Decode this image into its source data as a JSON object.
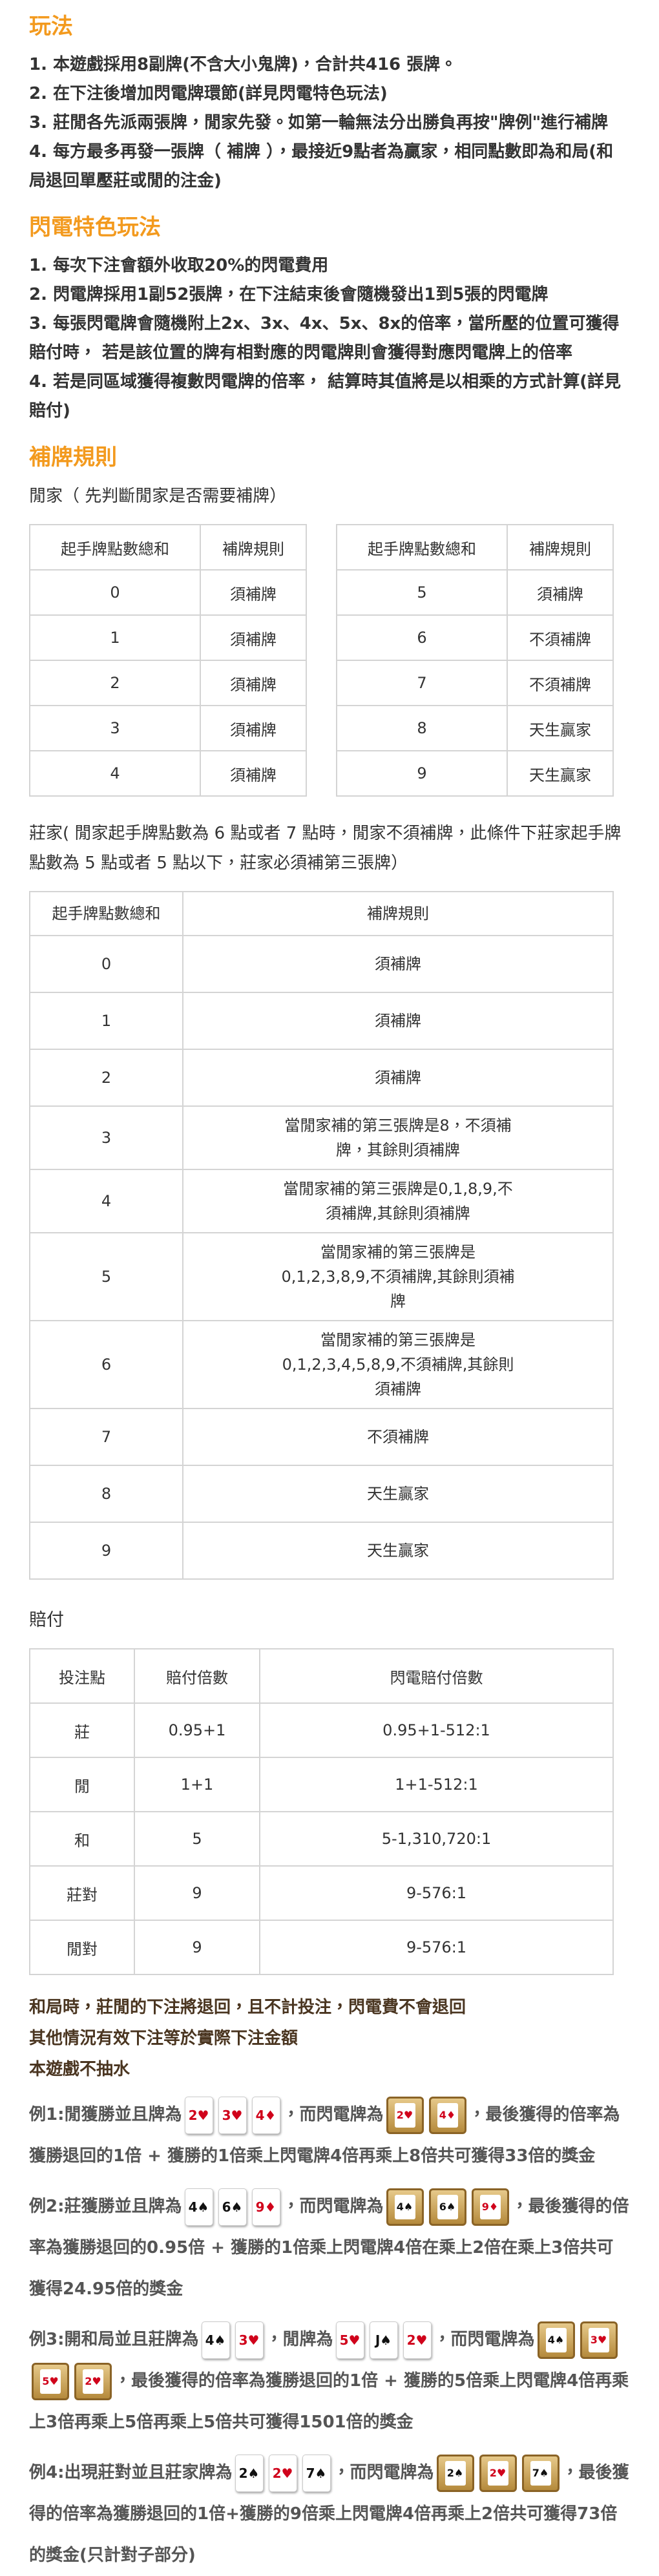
{
  "rules": {
    "title": "玩法",
    "items": [
      "1. 本遊戲採用8副牌(不含大小鬼牌)，合計共416 張牌。",
      "2. 在下注後增加閃電牌環節(詳見閃電特色玩法)",
      "3. 莊閒各先派兩張牌，閒家先發。如第一輪無法分出勝負再按\"牌例\"進行補牌",
      "4. 每方最多再發一張牌（ 補牌 ），最接近9點者為贏家，相同點數即為和局(和局退回單壓莊或閒的注金)"
    ]
  },
  "lightning": {
    "title": "閃電特色玩法",
    "items": [
      "1. 每次下注會額外收取20%的閃電費用",
      "2. 閃電牌採用1副52張牌，在下注結束後會隨機發出1到5張的閃電牌",
      "3. 每張閃電牌會隨機附上2x、3x、4x、5x、8x的倍率，當所壓的位置可獲得賠付時， 若是該位置的牌有相對應的閃電牌則會獲得對應閃電牌上的倍率",
      "4. 若是同區域獲得複數閃電牌的倍率， 結算時其值將是以相乘的方式計算(詳見賠付)"
    ]
  },
  "drawing": {
    "title": "補牌規則",
    "player_note": "閒家（ 先判斷閒家是否需要補牌）",
    "player_table": {
      "header": [
        "起手牌點數總和",
        "補牌規則"
      ],
      "rows": [
        [
          "0",
          "須補牌"
        ],
        [
          "1",
          "須補牌"
        ],
        [
          "2",
          "須補牌"
        ],
        [
          "3",
          "須補牌"
        ],
        [
          "4",
          "須補牌"
        ],
        [
          "5",
          "須補牌"
        ],
        [
          "6",
          "不須補牌"
        ],
        [
          "7",
          "不須補牌"
        ],
        [
          "8",
          "天生贏家"
        ],
        [
          "9",
          "天生贏家"
        ]
      ]
    },
    "banker_note": "莊家( 閒家起手牌點數為 6 點或者 7 點時，閒家不須補牌，此條件下莊家起手牌點數為 5 點或者 5 點以下，莊家必須補第三張牌）",
    "banker_table": {
      "header": [
        "起手牌點數總和",
        "補牌規則"
      ],
      "rows": [
        [
          "0",
          "須補牌"
        ],
        [
          "1",
          "須補牌"
        ],
        [
          "2",
          "須補牌"
        ],
        [
          "3",
          "當閒家補的第三張牌是8，不須補牌，其餘則須補牌"
        ],
        [
          "4",
          "當閒家補的第三張牌是0,1,8,9,不須補牌,其餘則須補牌"
        ],
        [
          "5",
          "當閒家補的第三張牌是0,1,2,3,8,9,不須補牌,其餘則須補牌"
        ],
        [
          "6",
          "當閒家補的第三張牌是0,1,2,3,4,5,8,9,不須補牌,其餘則須補牌"
        ],
        [
          "7",
          "不須補牌"
        ],
        [
          "8",
          "天生贏家"
        ],
        [
          "9",
          "天生贏家"
        ]
      ]
    }
  },
  "payout": {
    "title": "賠付",
    "table": {
      "header": [
        "投注點",
        "賠付倍數",
        "閃電賠付倍數"
      ],
      "rows": [
        [
          "莊",
          "0.95+1",
          "0.95+1-512:1"
        ],
        [
          "閒",
          "1+1",
          "1+1-512:1"
        ],
        [
          "和",
          "5",
          "5-1,310,720:1"
        ],
        [
          "莊對",
          "9",
          "9-576:1"
        ],
        [
          "閒對",
          "9",
          "9-576:1"
        ]
      ]
    },
    "notes": [
      "和局時，莊閒的下注將退回，且不計投注，閃電費不會退回",
      "其他情況有效下注等於實際下注金額",
      "本遊戲不抽水"
    ],
    "examples": [
      [
        {
          "text": "例1:閒獲勝並且牌為"
        },
        {
          "cards": [
            "2♥",
            "3♥",
            "4♦"
          ]
        },
        {
          "text": "，而閃電牌為"
        },
        {
          "lightning": [
            "2♥",
            "4♦"
          ]
        },
        {
          "text": "，最後獲得的倍率為獲勝退回的1倍 + 獲勝的1倍乘上閃電牌4倍再乘上8倍共可獲得33倍的獎金"
        }
      ],
      [
        {
          "text": "例2:莊獲勝並且牌為"
        },
        {
          "cards": [
            "4♠",
            "6♠",
            "9♦"
          ]
        },
        {
          "text": "，而閃電牌為"
        },
        {
          "lightning": [
            "4♠",
            "6♠",
            "9♦"
          ]
        },
        {
          "text": "，最後獲得的倍率為獲勝退回的0.95倍 + 獲勝的1倍乘上閃電牌4倍在乘上2倍在乘上3倍共可獲得24.95倍的獎金"
        }
      ],
      [
        {
          "text": "例3:開和局並且莊牌為"
        },
        {
          "cards": [
            "4♠",
            "3♥"
          ]
        },
        {
          "text": "，閒牌為"
        },
        {
          "cards": [
            "5♥",
            "J♠",
            "2♥"
          ]
        },
        {
          "text": "，而閃電牌為"
        },
        {
          "lightning": [
            "4♠",
            "3♥",
            "5♥",
            "2♥"
          ]
        },
        {
          "text": "，最後獲得的倍率為獲勝退回的1倍 + 獲勝的5倍乘上閃電牌4倍再乘上3倍再乘上5倍再乘上5倍共可獲得1501倍的獎金"
        }
      ],
      [
        {
          "text": "例4:出現莊對並且莊家牌為"
        },
        {
          "cards": [
            "2♠",
            "2♥",
            "7♠"
          ]
        },
        {
          "text": "，而閃電牌為"
        },
        {
          "lightning": [
            "2♠",
            "2♥",
            "7♠"
          ]
        },
        {
          "text": "，最後獲得的倍率為獲勝退回的1倍+獲勝的9倍乘上閃電牌4倍再乘上2倍共可獲得73倍的獎金(只計對子部分)"
        }
      ]
    ]
  }
}
